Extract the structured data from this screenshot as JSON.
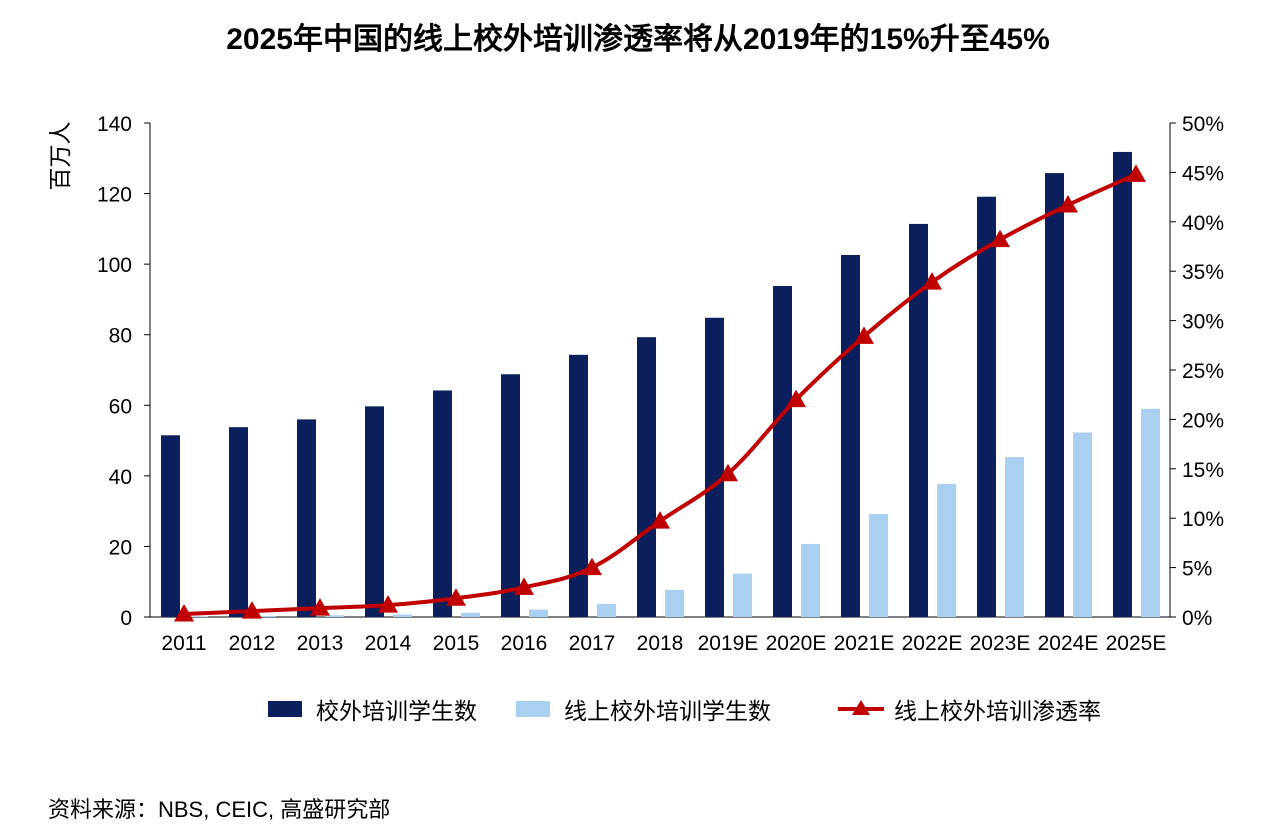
{
  "title": "2025年中国的线上校外培训渗透率将从2019年的15%升至45%",
  "source": "资料来源：NBS, CEIC, 高盛研究部",
  "colors": {
    "total": "#0a1f5c",
    "online": "#a9d0f0",
    "rate": "#c00000"
  },
  "chart_data": {
    "type": "bar",
    "categories": [
      "2011",
      "2012",
      "2013",
      "2014",
      "2015",
      "2016",
      "2017",
      "2018",
      "2019E",
      "2020E",
      "2021E",
      "2022E",
      "2023E",
      "2024E",
      "2025E"
    ],
    "ylabel": "百万人",
    "ylim": [
      0,
      140
    ],
    "yticks": [
      "0",
      "20",
      "40",
      "60",
      "80",
      "100",
      "120",
      "140"
    ],
    "y2lim": [
      0,
      50
    ],
    "y2ticks": [
      "0%",
      "5%",
      "10%",
      "15%",
      "20%",
      "25%",
      "30%",
      "35%",
      "40%",
      "45%",
      "50%"
    ],
    "legend_position": "bottom",
    "grid": false,
    "series": [
      {
        "name": "校外培训学生数",
        "type": "bar",
        "axis": "left",
        "values": [
          51.5,
          53.8,
          56.0,
          59.7,
          64.2,
          68.8,
          74.3,
          79.3,
          84.8,
          93.8,
          102.6,
          111.4,
          119.1,
          125.8,
          131.8
        ]
      },
      {
        "name": "线上校外培训学生数",
        "type": "bar",
        "axis": "left",
        "values": [
          0.2,
          0.3,
          0.5,
          0.7,
          1.2,
          2.1,
          3.7,
          7.7,
          12.3,
          20.7,
          29.2,
          37.7,
          45.3,
          52.3,
          59.0
        ]
      },
      {
        "name": "线上校外培训渗透率",
        "type": "line",
        "axis": "right",
        "unit": "%",
        "values": [
          0.3,
          0.6,
          0.9,
          1.2,
          1.9,
          3.0,
          5.0,
          9.7,
          14.5,
          22.0,
          28.4,
          33.9,
          38.2,
          41.7,
          44.8
        ]
      }
    ]
  }
}
